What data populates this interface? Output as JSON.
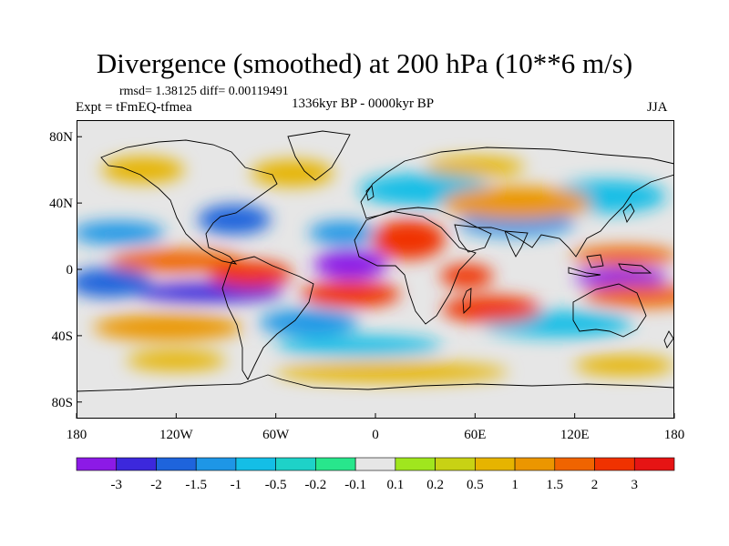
{
  "title": "Divergence (smoothed) at 200 hPa (10**6 m/s)",
  "stats": "rmsd= 1.38125 diff= 0.00119491",
  "experiment": "Expt = tFmEQ-tfmea",
  "period": "1336kyr BP - 0000kyr BP",
  "season": "JJA",
  "map": {
    "longitude_range": [
      -180,
      180
    ],
    "latitude_range": [
      -90,
      90
    ],
    "y_ticks": [
      {
        "lat": 80,
        "label": "80N"
      },
      {
        "lat": 40,
        "label": "40N"
      },
      {
        "lat": 0,
        "label": "0"
      },
      {
        "lat": -40,
        "label": "40S"
      },
      {
        "lat": -80,
        "label": "80S"
      }
    ],
    "x_ticks": [
      {
        "lon": -180,
        "label": "180"
      },
      {
        "lon": -120,
        "label": "120W"
      },
      {
        "lon": -60,
        "label": "60W"
      },
      {
        "lon": 0,
        "label": "0"
      },
      {
        "lon": 60,
        "label": "60E"
      },
      {
        "lon": 120,
        "label": "120E"
      },
      {
        "lon": 180,
        "label": "180"
      }
    ]
  },
  "colorbar": {
    "colors": [
      "#8c1ae6",
      "#3c28dc",
      "#1e64dc",
      "#1e96e6",
      "#14bee6",
      "#1ed2c8",
      "#28e68c",
      "#e6e6e6",
      "#a0e61e",
      "#c8d214",
      "#e6b400",
      "#eb9600",
      "#f06400",
      "#f03200",
      "#e61414"
    ],
    "labels": [
      "-3",
      "-2",
      "-1.5",
      "-1",
      "-0.5",
      "-0.2",
      "-0.1",
      "0.1",
      "0.2",
      "0.5",
      "1",
      "1.5",
      "2",
      "3"
    ]
  },
  "anomaly_blobs": [
    {
      "lon": -15,
      "lat": 3,
      "rlon": 22,
      "rlat": 9,
      "v": -4
    },
    {
      "lon": 148,
      "lat": -5,
      "rlon": 28,
      "rlat": 6,
      "v": -3.5
    },
    {
      "lon": -160,
      "lat": -8,
      "rlon": 25,
      "rlat": 9,
      "v": -2
    },
    {
      "lon": -100,
      "lat": -14,
      "rlon": 45,
      "rlat": 6,
      "v": -2.2
    },
    {
      "lon": -20,
      "lat": 22,
      "rlon": 20,
      "rlat": 7,
      "v": -1.5
    },
    {
      "lon": -155,
      "lat": 22,
      "rlon": 28,
      "rlat": 7,
      "v": -1.4
    },
    {
      "lon": -85,
      "lat": 30,
      "rlon": 22,
      "rlat": 9,
      "v": -2
    },
    {
      "lon": 85,
      "lat": 28,
      "rlon": 35,
      "rlat": 8,
      "v": -1.3
    },
    {
      "lon": 30,
      "lat": 48,
      "rlon": 40,
      "rlat": 10,
      "v": -1
    },
    {
      "lon": 140,
      "lat": 44,
      "rlon": 35,
      "rlat": 10,
      "v": -1
    },
    {
      "lon": 110,
      "lat": -33,
      "rlon": 45,
      "rlat": 8,
      "v": -0.8
    },
    {
      "lon": -40,
      "lat": -32,
      "rlon": 30,
      "rlat": 8,
      "v": -1.5
    },
    {
      "lon": -10,
      "lat": -46,
      "rlon": 50,
      "rlat": 6,
      "v": -0.6
    },
    {
      "lon": 20,
      "lat": 18,
      "rlon": 22,
      "rlat": 12,
      "v": 2.3
    },
    {
      "lon": -15,
      "lat": -15,
      "rlon": 30,
      "rlat": 8,
      "v": 2.2
    },
    {
      "lon": 55,
      "lat": -4,
      "rlon": 16,
      "rlat": 7,
      "v": 2.6
    },
    {
      "lon": 70,
      "lat": -24,
      "rlon": 30,
      "rlat": 8,
      "v": 2
    },
    {
      "lon": 160,
      "lat": -16,
      "rlon": 35,
      "rlat": 7,
      "v": 1.8
    },
    {
      "lon": -120,
      "lat": 5,
      "rlon": 40,
      "rlat": 7,
      "v": 1.5
    },
    {
      "lon": -75,
      "lat": -3,
      "rlon": 25,
      "rlat": 8,
      "v": 2.3
    },
    {
      "lon": 150,
      "lat": 8,
      "rlon": 32,
      "rlat": 6,
      "v": 1.6
    },
    {
      "lon": 85,
      "lat": 40,
      "rlon": 45,
      "rlat": 10,
      "v": 1.2
    },
    {
      "lon": -125,
      "lat": -35,
      "rlon": 45,
      "rlat": 8,
      "v": 1
    },
    {
      "lon": 10,
      "lat": -62,
      "rlon": 70,
      "rlat": 6,
      "v": 0.8
    },
    {
      "lon": 150,
      "lat": -58,
      "rlon": 30,
      "rlat": 6,
      "v": 0.7
    },
    {
      "lon": -120,
      "lat": -55,
      "rlon": 30,
      "rlat": 6,
      "v": 0.6
    },
    {
      "lon": -50,
      "lat": 58,
      "rlon": 25,
      "rlat": 8,
      "v": 0.6
    },
    {
      "lon": -140,
      "lat": 60,
      "rlon": 25,
      "rlat": 8,
      "v": 0.5
    },
    {
      "lon": 60,
      "lat": 62,
      "rlon": 30,
      "rlat": 6,
      "v": 0.5
    }
  ]
}
